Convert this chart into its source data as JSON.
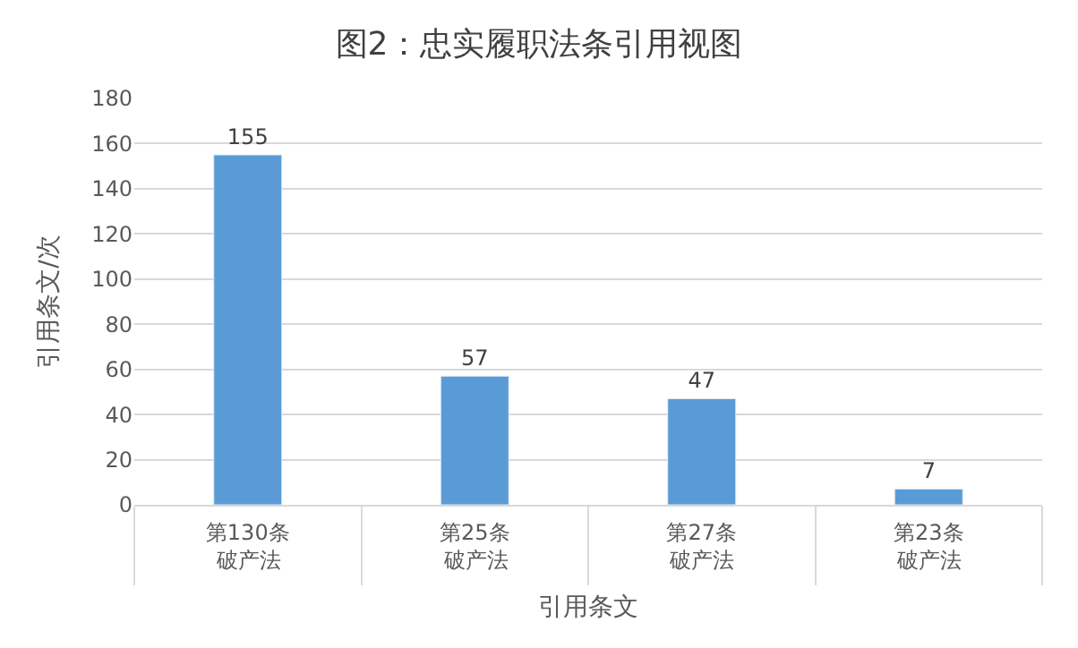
{
  "chart_data": {
    "type": "bar",
    "title": "图2：忠实履职法条引用视图",
    "xlabel": "引用条文",
    "ylabel": "引用条文/次",
    "categories": [
      "第130条",
      "第25条",
      "第27条",
      "第23条"
    ],
    "annotations": [
      "破产法",
      "破产法",
      "破产法",
      "破产法"
    ],
    "values": [
      155,
      57,
      47,
      7
    ],
    "color": "#5b9bd5",
    "ylim": [
      0,
      180
    ],
    "yticks": [
      0,
      20,
      40,
      60,
      80,
      100,
      120,
      140,
      160,
      180
    ],
    "grid": "y",
    "data_labels": true
  }
}
